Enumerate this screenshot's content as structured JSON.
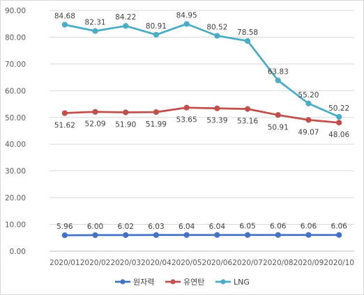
{
  "chart_data": {
    "type": "line",
    "title": "",
    "xlabel": "",
    "ylabel": "",
    "categories": [
      "2020/01",
      "2020/02",
      "2020/03",
      "2020/04",
      "2020/05",
      "2020/06",
      "2020/07",
      "2020/08",
      "2020/09",
      "2020/10"
    ],
    "ylim": [
      0,
      90
    ],
    "yticks": [
      "0.00",
      "10.00",
      "20.00",
      "30.00",
      "40.00",
      "50.00",
      "60.00",
      "70.00",
      "80.00",
      "90.00"
    ],
    "grid": true,
    "legend_position": "bottom",
    "series": [
      {
        "name": "원자력",
        "color": "#4472c4",
        "values": [
          5.96,
          6.0,
          6.02,
          6.03,
          6.04,
          6.04,
          6.05,
          6.06,
          6.06,
          6.06
        ],
        "labels": [
          "5.96",
          "6.00",
          "6.02",
          "6.03",
          "6.04",
          "6.04",
          "6.05",
          "6.06",
          "6.06",
          "6.06"
        ]
      },
      {
        "name": "유연탄",
        "color": "#c0504d",
        "values": [
          51.62,
          52.09,
          51.9,
          51.99,
          53.65,
          53.39,
          53.16,
          50.91,
          49.07,
          48.06
        ],
        "labels": [
          "51.62",
          "52.09",
          "51.90",
          "51.99",
          "53.65",
          "53.39",
          "53.16",
          "50.91",
          "49.07",
          "48.06"
        ]
      },
      {
        "name": "LNG",
        "color": "#4bacc6",
        "values": [
          84.68,
          82.31,
          84.22,
          80.91,
          84.95,
          80.52,
          78.58,
          63.83,
          55.2,
          50.22
        ],
        "labels": [
          "84.68",
          "82.31",
          "84.22",
          "80.91",
          "84.95",
          "80.52",
          "78.58",
          "63.83",
          "55.20",
          "50.22"
        ]
      }
    ]
  }
}
